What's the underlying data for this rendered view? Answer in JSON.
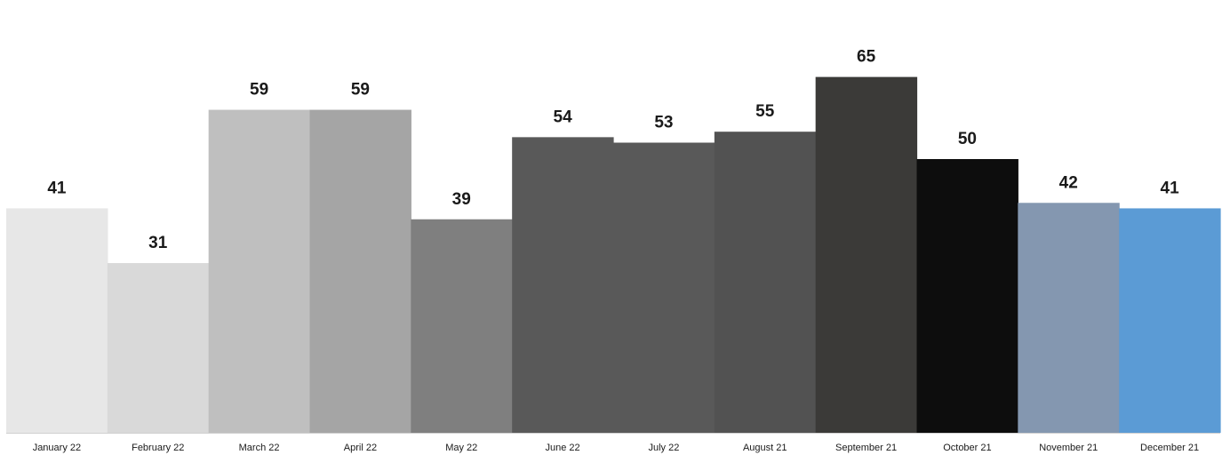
{
  "chart_data": {
    "type": "bar",
    "categories": [
      "January 22",
      "February 22",
      "March 22",
      "April 22",
      "May 22",
      "June 22",
      "July 22",
      "August 21",
      "September 21",
      "October 21",
      "November 21",
      "December 21"
    ],
    "values": [
      41,
      31,
      59,
      59,
      39,
      54,
      53,
      55,
      65,
      50,
      42,
      41
    ],
    "colors": [
      "#e7e7e7",
      "#d9d9d9",
      "#bfbfbf",
      "#a5a5a5",
      "#7f7f7f",
      "#595959",
      "#595959",
      "#525252",
      "#3b3a38",
      "#0d0d0d",
      "#8497b0",
      "#5b9bd5"
    ],
    "title": "",
    "xlabel": "",
    "ylabel": "",
    "ylim": [
      0,
      70
    ],
    "grid": false,
    "legend": "none",
    "data_labels": true
  }
}
